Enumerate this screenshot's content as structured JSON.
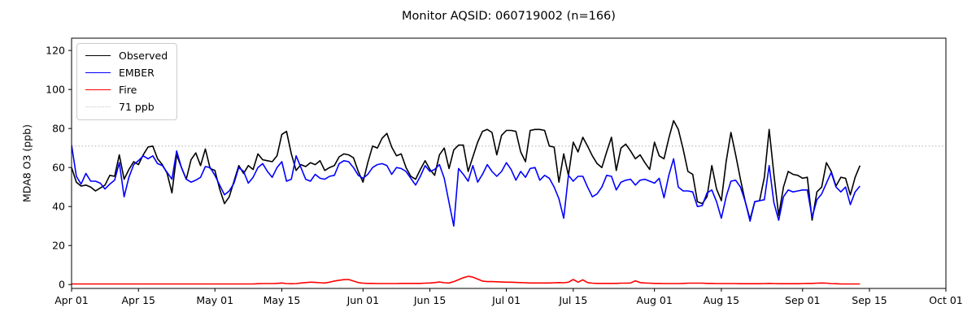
{
  "title": "Monitor AQSID: 060719002 (n=166)",
  "ylabel": "MDA8 O3 (ppb)",
  "legend": {
    "observed": "Observed",
    "ember": "EMBER",
    "fire": "Fire",
    "threshold": "71 ppb"
  },
  "colors": {
    "observed": "#000000",
    "ember": "#0000ff",
    "fire": "#ff0000",
    "threshold": "#c8c8c8",
    "axis": "#000000",
    "background": "#ffffff"
  },
  "chart_data": {
    "type": "line",
    "start_date": "Apr 01",
    "end_date": "Sep 13",
    "n_points": 166,
    "threshold_ppb": 71,
    "grid": "off",
    "legend_position": "upper-left",
    "ylim": [
      0,
      126
    ],
    "yticks": [
      0,
      20,
      40,
      60,
      80,
      100,
      120
    ],
    "x_axis_days_total": 183,
    "xticks": [
      {
        "label": "Apr 01",
        "day": 0
      },
      {
        "label": "Apr 15",
        "day": 14
      },
      {
        "label": "May 01",
        "day": 30
      },
      {
        "label": "May 15",
        "day": 44
      },
      {
        "label": "Jun 01",
        "day": 61
      },
      {
        "label": "Jun 15",
        "day": 75
      },
      {
        "label": "Jul 01",
        "day": 91
      },
      {
        "label": "Jul 15",
        "day": 105
      },
      {
        "label": "Aug 01",
        "day": 122
      },
      {
        "label": "Aug 15",
        "day": 136
      },
      {
        "label": "Sep 01",
        "day": 153
      },
      {
        "label": "Sep 15",
        "day": 167
      },
      {
        "label": "Oct 01",
        "day": 183
      }
    ],
    "series": [
      {
        "name": "Observed",
        "color_key": "observed",
        "values": [
          60,
          52.5,
          50.5,
          51,
          50,
          48,
          49.5,
          51,
          56,
          55.5,
          66.5,
          54,
          59,
          63,
          61.5,
          66.5,
          70.5,
          71,
          64.5,
          61.5,
          57,
          47,
          66.5,
          60,
          54,
          64,
          67.5,
          61,
          69.5,
          59.5,
          58.5,
          49,
          41.5,
          45,
          53,
          61,
          57,
          61,
          59,
          67,
          64,
          63.5,
          63,
          66,
          77,
          78.5,
          67,
          58.5,
          61.5,
          60.5,
          62.5,
          61.5,
          63.5,
          58.5,
          60,
          61,
          65.5,
          67,
          66.5,
          65,
          58,
          52.5,
          62.5,
          71,
          70,
          75,
          77.5,
          70.5,
          66,
          67,
          60,
          55.5,
          54,
          59,
          63.5,
          59,
          56,
          66.5,
          70,
          59.5,
          69,
          71.5,
          71.5,
          58,
          65.5,
          73,
          78.5,
          79.5,
          78,
          66.5,
          76.5,
          79,
          79,
          78.5,
          68,
          63,
          79,
          79.5,
          79.5,
          79,
          71,
          70.5,
          52.5,
          67,
          56,
          73,
          68,
          75.5,
          71,
          66,
          62,
          60,
          68,
          75.5,
          58.5,
          70,
          72,
          68.5,
          64.5,
          66.5,
          62.5,
          59,
          73,
          66,
          64.5,
          75,
          84,
          79.5,
          69.5,
          58,
          56.5,
          42.5,
          41.5,
          45,
          61,
          49,
          43,
          63,
          78,
          66.5,
          54,
          42.5,
          33.5,
          42.5,
          43,
          55,
          79.5,
          56.5,
          35.5,
          50,
          58,
          56.5,
          56,
          54.5,
          55,
          33,
          47.5,
          50,
          62.5,
          58,
          50.5,
          55,
          54.5,
          46,
          55,
          61
        ]
      },
      {
        "name": "EMBER",
        "color_key": "ember",
        "values": [
          71.5,
          55.5,
          51.5,
          57,
          53,
          53,
          52,
          49,
          51.5,
          53.5,
          62.5,
          45,
          55,
          61.5,
          63.5,
          66,
          64.5,
          66,
          62,
          61,
          57.5,
          54,
          68.5,
          60,
          54,
          52.5,
          53.5,
          55,
          60.5,
          60,
          56,
          51,
          46,
          48,
          52,
          60,
          58,
          52,
          55,
          60,
          62,
          58,
          55,
          60,
          63,
          53,
          54,
          66,
          60,
          54,
          53,
          56.5,
          54.5,
          54,
          55.5,
          56,
          62,
          63.5,
          63,
          60,
          56,
          54.5,
          56.5,
          60,
          61.5,
          62,
          61,
          56.5,
          60,
          59.5,
          58,
          54.5,
          51,
          55.5,
          61,
          58,
          59,
          61.5,
          54.5,
          42,
          30,
          59.5,
          56.5,
          53,
          61,
          52.5,
          56.5,
          61.5,
          58,
          55.5,
          58,
          62.5,
          59,
          53.5,
          58,
          55,
          59.5,
          60,
          53.5,
          56,
          54.5,
          50,
          44,
          34,
          56,
          53,
          55.5,
          55.5,
          50,
          45,
          46.5,
          50,
          56,
          55.5,
          48.5,
          52.5,
          53.5,
          54,
          51,
          53.5,
          54,
          53,
          52,
          54.5,
          44.5,
          56,
          64.5,
          50,
          48,
          48,
          47.5,
          40,
          40.5,
          47,
          48.5,
          42.5,
          34,
          45,
          53,
          53.5,
          50,
          42.5,
          32.5,
          42.5,
          43,
          43.5,
          61,
          42,
          33,
          45,
          48.5,
          47.5,
          48,
          48.5,
          48.5,
          34.5,
          43.5,
          46.5,
          52,
          57.5,
          50,
          47.5,
          50,
          41,
          47.5,
          50.5
        ]
      },
      {
        "name": "Fire",
        "color_key": "fire",
        "values": [
          0.3,
          0.3,
          0.3,
          0.3,
          0.3,
          0.3,
          0.3,
          0.3,
          0.3,
          0.3,
          0.3,
          0.3,
          0.3,
          0.3,
          0.3,
          0.3,
          0.3,
          0.3,
          0.3,
          0.3,
          0.3,
          0.3,
          0.3,
          0.3,
          0.3,
          0.3,
          0.3,
          0.3,
          0.3,
          0.3,
          0.3,
          0.3,
          0.3,
          0.3,
          0.3,
          0.3,
          0.3,
          0.3,
          0.3,
          0.4,
          0.5,
          0.5,
          0.5,
          0.6,
          0.8,
          0.5,
          0.4,
          0.5,
          0.8,
          1.0,
          1.2,
          1.1,
          0.9,
          0.8,
          1.2,
          1.8,
          2.2,
          2.5,
          2.6,
          1.8,
          1.0,
          0.7,
          0.6,
          0.6,
          0.5,
          0.5,
          0.5,
          0.5,
          0.5,
          0.6,
          0.6,
          0.6,
          0.6,
          0.6,
          0.7,
          0.8,
          1.0,
          1.3,
          0.9,
          0.8,
          1.5,
          2.5,
          3.5,
          4.2,
          3.8,
          2.8,
          1.8,
          1.5,
          1.5,
          1.4,
          1.3,
          1.2,
          1.2,
          1.1,
          1.0,
          0.9,
          0.8,
          0.8,
          0.8,
          0.8,
          0.8,
          0.9,
          1.0,
          0.9,
          1.2,
          2.6,
          1.2,
          2.4,
          1.0,
          0.7,
          0.6,
          0.6,
          0.6,
          0.6,
          0.6,
          0.7,
          0.7,
          0.8,
          1.9,
          1.0,
          0.8,
          0.7,
          0.6,
          0.6,
          0.5,
          0.5,
          0.5,
          0.5,
          0.6,
          0.7,
          0.7,
          0.7,
          0.7,
          0.6,
          0.6,
          0.5,
          0.5,
          0.5,
          0.5,
          0.5,
          0.4,
          0.4,
          0.4,
          0.4,
          0.4,
          0.5,
          0.6,
          0.5,
          0.4,
          0.4,
          0.4,
          0.4,
          0.4,
          0.5,
          0.6,
          0.6,
          0.7,
          0.8,
          0.7,
          0.5,
          0.4,
          0.3,
          0.3,
          0.3,
          0.3,
          0.3
        ]
      }
    ]
  }
}
